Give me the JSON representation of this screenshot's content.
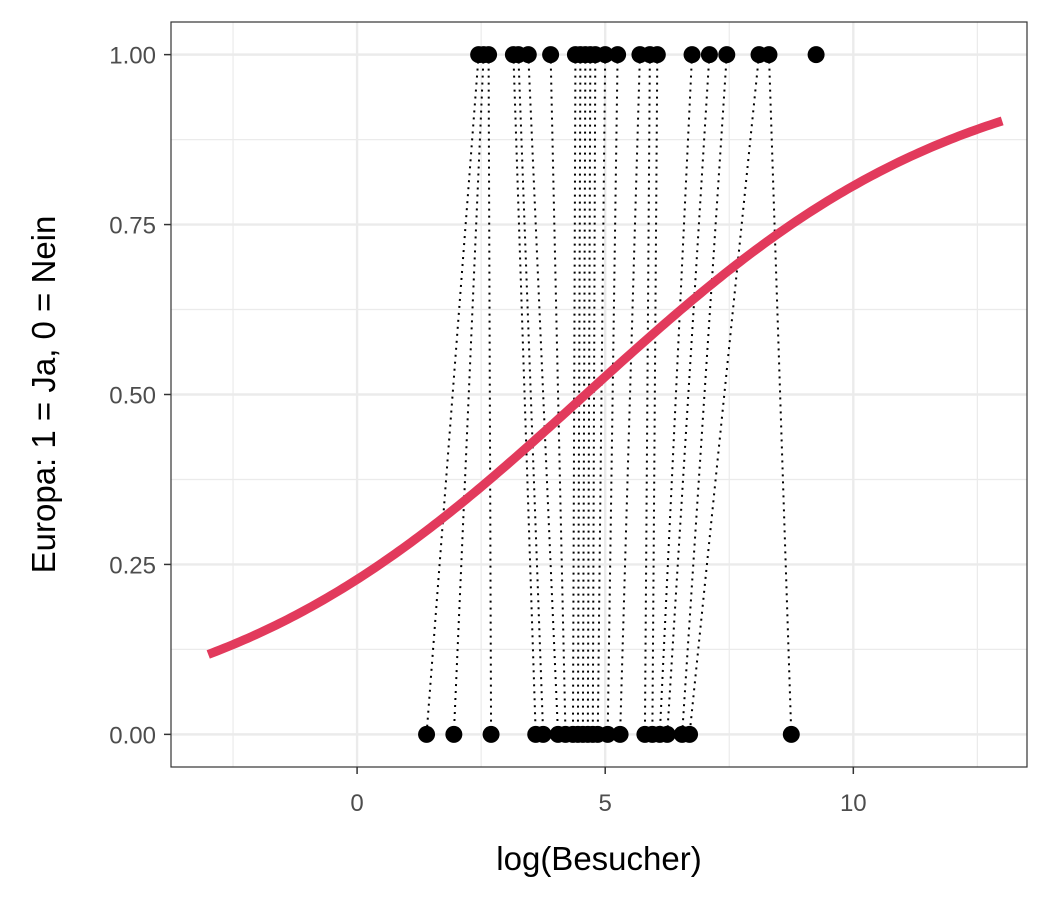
{
  "chart_data": {
    "type": "scatter",
    "title": "",
    "xlabel": "log(Besucher)",
    "ylabel": "Europa: 1 = Ja, 0 = Nein",
    "xlim": [
      -3.75,
      13.5
    ],
    "ylim": [
      -0.048,
      1.048
    ],
    "x_ticks": [
      0,
      5,
      10
    ],
    "x_tick_labels": [
      "0",
      "5",
      "10"
    ],
    "y_ticks": [
      0,
      0.25,
      0.5,
      0.75,
      1
    ],
    "y_tick_labels": [
      "0.00",
      "0.25",
      "0.50",
      "0.75",
      "1.00"
    ],
    "grid": true,
    "legend": "none",
    "colors": {
      "curve": "#e23a5c",
      "points": "#000000",
      "grid": "#ebebeb",
      "border": "#333333",
      "tick_label": "#4d4d4d"
    },
    "logistic_fit": {
      "intercept": -1.22,
      "slope": 0.265,
      "x_range": [
        -3,
        13
      ]
    },
    "points_y1": [
      2.45,
      2.55,
      2.65,
      3.15,
      3.25,
      3.45,
      3.9,
      4.4,
      4.5,
      4.6,
      4.7,
      4.8,
      5.0,
      5.25,
      5.7,
      5.9,
      6.05,
      6.75,
      7.1,
      7.45,
      8.1,
      8.3,
      9.25
    ],
    "points_y0": [
      1.4,
      1.95,
      2.7,
      3.6,
      3.75,
      4.05,
      4.2,
      4.35,
      4.45,
      4.55,
      4.65,
      4.75,
      4.85,
      5.05,
      5.3,
      5.8,
      5.95,
      6.1,
      6.25,
      6.55,
      6.7,
      8.75
    ],
    "connector_pairs": [
      [
        2.45,
        1.4
      ],
      [
        2.55,
        1.95
      ],
      [
        2.65,
        2.7
      ],
      [
        3.15,
        3.6
      ],
      [
        3.25,
        3.75
      ],
      [
        3.45,
        4.05
      ],
      [
        3.9,
        4.2
      ],
      [
        4.4,
        4.35
      ],
      [
        4.5,
        4.45
      ],
      [
        4.6,
        4.55
      ],
      [
        4.7,
        4.65
      ],
      [
        4.8,
        4.75
      ],
      [
        5.0,
        4.85
      ],
      [
        5.25,
        5.05
      ],
      [
        5.7,
        5.3
      ],
      [
        5.9,
        5.8
      ],
      [
        6.05,
        5.95
      ],
      [
        6.75,
        6.1
      ],
      [
        7.1,
        6.25
      ],
      [
        7.45,
        6.55
      ],
      [
        8.1,
        6.7
      ],
      [
        8.3,
        8.75
      ]
    ]
  }
}
